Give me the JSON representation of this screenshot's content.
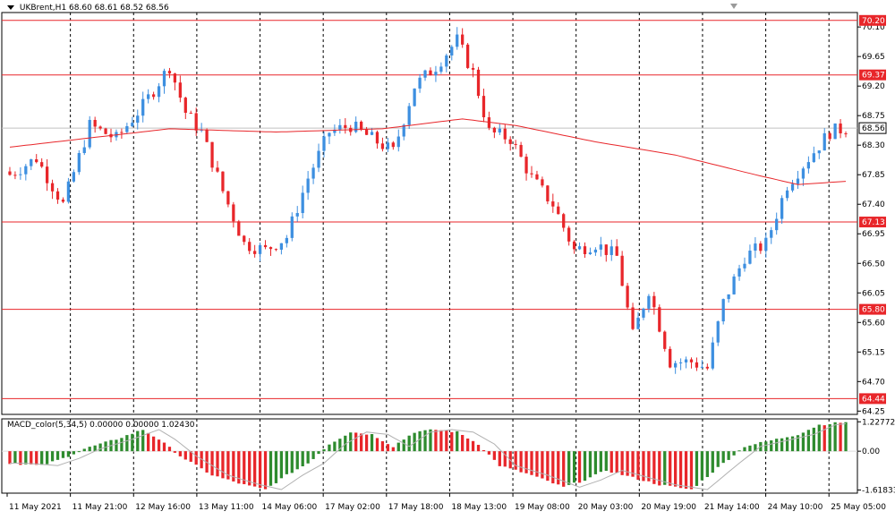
{
  "header": {
    "symbol": "UKBrent,H1",
    "ohlc": "68.60 68.61 68.52 68.56"
  },
  "macd_label": "MACD_color(5,34,5) 0.00000 0.00000 1.02430",
  "colors": {
    "bull": "#3d8fe0",
    "bear": "#e8262a",
    "ma": "#e8262a",
    "level": "#e8262a",
    "macd_up": "#2e8b2e",
    "macd_down": "#e8262a",
    "signal": "#b0b0b0",
    "grid": "#000000",
    "axis": "#000000",
    "price_tag_bg": "#ffffff"
  },
  "chart_data": [
    {
      "type": "candlestick",
      "title": "UKBrent,H1",
      "y_ticks": [
        "70.10",
        "69.65",
        "69.20",
        "68.75",
        "68.30",
        "67.85",
        "67.40",
        "66.95",
        "66.50",
        "66.05",
        "65.60",
        "65.15",
        "64.70",
        "64.25"
      ],
      "ylim": [
        64.2,
        70.32
      ],
      "current_price": "68.56",
      "levels": [
        {
          "value": 70.2,
          "label": "70.20"
        },
        {
          "value": 69.37,
          "label": "69.37"
        },
        {
          "value": 67.13,
          "label": "67.13"
        },
        {
          "value": 65.8,
          "label": "65.80"
        },
        {
          "value": 64.44,
          "label": "64.44"
        }
      ],
      "x_labels": [
        "11 May 2021",
        "11 May 21:00",
        "12 May 16:00",
        "13 May 11:00",
        "14 May 06:00",
        "17 May 02:00",
        "17 May 18:00",
        "18 May 13:00",
        "19 May 08:00",
        "20 May 03:00",
        "20 May 19:00",
        "21 May 14:00",
        "24 May 10:00",
        "25 May 05:00"
      ],
      "bars": 158,
      "close_anchors": [
        [
          0,
          67.85
        ],
        [
          5,
          68.1
        ],
        [
          10,
          67.4
        ],
        [
          15,
          68.6
        ],
        [
          20,
          68.4
        ],
        [
          25,
          68.9
        ],
        [
          30,
          69.5
        ],
        [
          33,
          68.8
        ],
        [
          36,
          68.5
        ],
        [
          40,
          67.6
        ],
        [
          44,
          66.8
        ],
        [
          48,
          66.7
        ],
        [
          52,
          66.9
        ],
        [
          56,
          67.8
        ],
        [
          60,
          68.5
        ],
        [
          64,
          68.6
        ],
        [
          68,
          68.4
        ],
        [
          72,
          68.2
        ],
        [
          76,
          69.2
        ],
        [
          80,
          69.5
        ],
        [
          84,
          69.9
        ],
        [
          87,
          69.4
        ],
        [
          90,
          68.5
        ],
        [
          94,
          68.4
        ],
        [
          98,
          67.8
        ],
        [
          102,
          67.4
        ],
        [
          106,
          66.7
        ],
        [
          110,
          66.8
        ],
        [
          114,
          66.6
        ],
        [
          117,
          65.4
        ],
        [
          120,
          66.1
        ],
        [
          124,
          65.0
        ],
        [
          128,
          65.0
        ],
        [
          131,
          64.9
        ],
        [
          134,
          65.9
        ],
        [
          138,
          66.6
        ],
        [
          142,
          66.8
        ],
        [
          146,
          67.7
        ],
        [
          150,
          68.1
        ],
        [
          154,
          68.5
        ],
        [
          157,
          68.56
        ]
      ],
      "ma_points": [
        [
          0,
          68.27
        ],
        [
          30,
          68.55
        ],
        [
          50,
          68.5
        ],
        [
          70,
          68.55
        ],
        [
          85,
          68.7
        ],
        [
          95,
          68.6
        ],
        [
          110,
          68.35
        ],
        [
          125,
          68.15
        ],
        [
          140,
          67.85
        ],
        [
          148,
          67.7
        ],
        [
          157,
          67.75
        ]
      ]
    },
    {
      "type": "histogram",
      "title": "MACD_color(5,34,5) 0.00000 0.00000 1.02430",
      "y_ticks": [
        "1.22772",
        "0.00",
        "-1.61833"
      ],
      "ylim": [
        -1.75,
        1.35
      ],
      "value_anchors": [
        [
          0,
          -0.5
        ],
        [
          6,
          -0.6
        ],
        [
          10,
          -0.3
        ],
        [
          14,
          0.1
        ],
        [
          20,
          0.5
        ],
        [
          25,
          0.9
        ],
        [
          28,
          0.5
        ],
        [
          32,
          -0.2
        ],
        [
          38,
          -1.0
        ],
        [
          44,
          -1.4
        ],
        [
          48,
          -1.6
        ],
        [
          52,
          -1.0
        ],
        [
          56,
          -0.5
        ],
        [
          60,
          0.3
        ],
        [
          64,
          0.8
        ],
        [
          68,
          0.7
        ],
        [
          72,
          0.2
        ],
        [
          76,
          0.8
        ],
        [
          80,
          0.9
        ],
        [
          84,
          0.8
        ],
        [
          88,
          0.3
        ],
        [
          92,
          -0.6
        ],
        [
          98,
          -1.0
        ],
        [
          104,
          -1.5
        ],
        [
          108,
          -1.2
        ],
        [
          112,
          -0.8
        ],
        [
          117,
          -1.1
        ],
        [
          122,
          -1.4
        ],
        [
          128,
          -1.6
        ],
        [
          134,
          -0.5
        ],
        [
          138,
          0.2
        ],
        [
          142,
          0.4
        ],
        [
          148,
          0.7
        ],
        [
          152,
          1.1
        ],
        [
          157,
          1.22
        ]
      ]
    }
  ]
}
